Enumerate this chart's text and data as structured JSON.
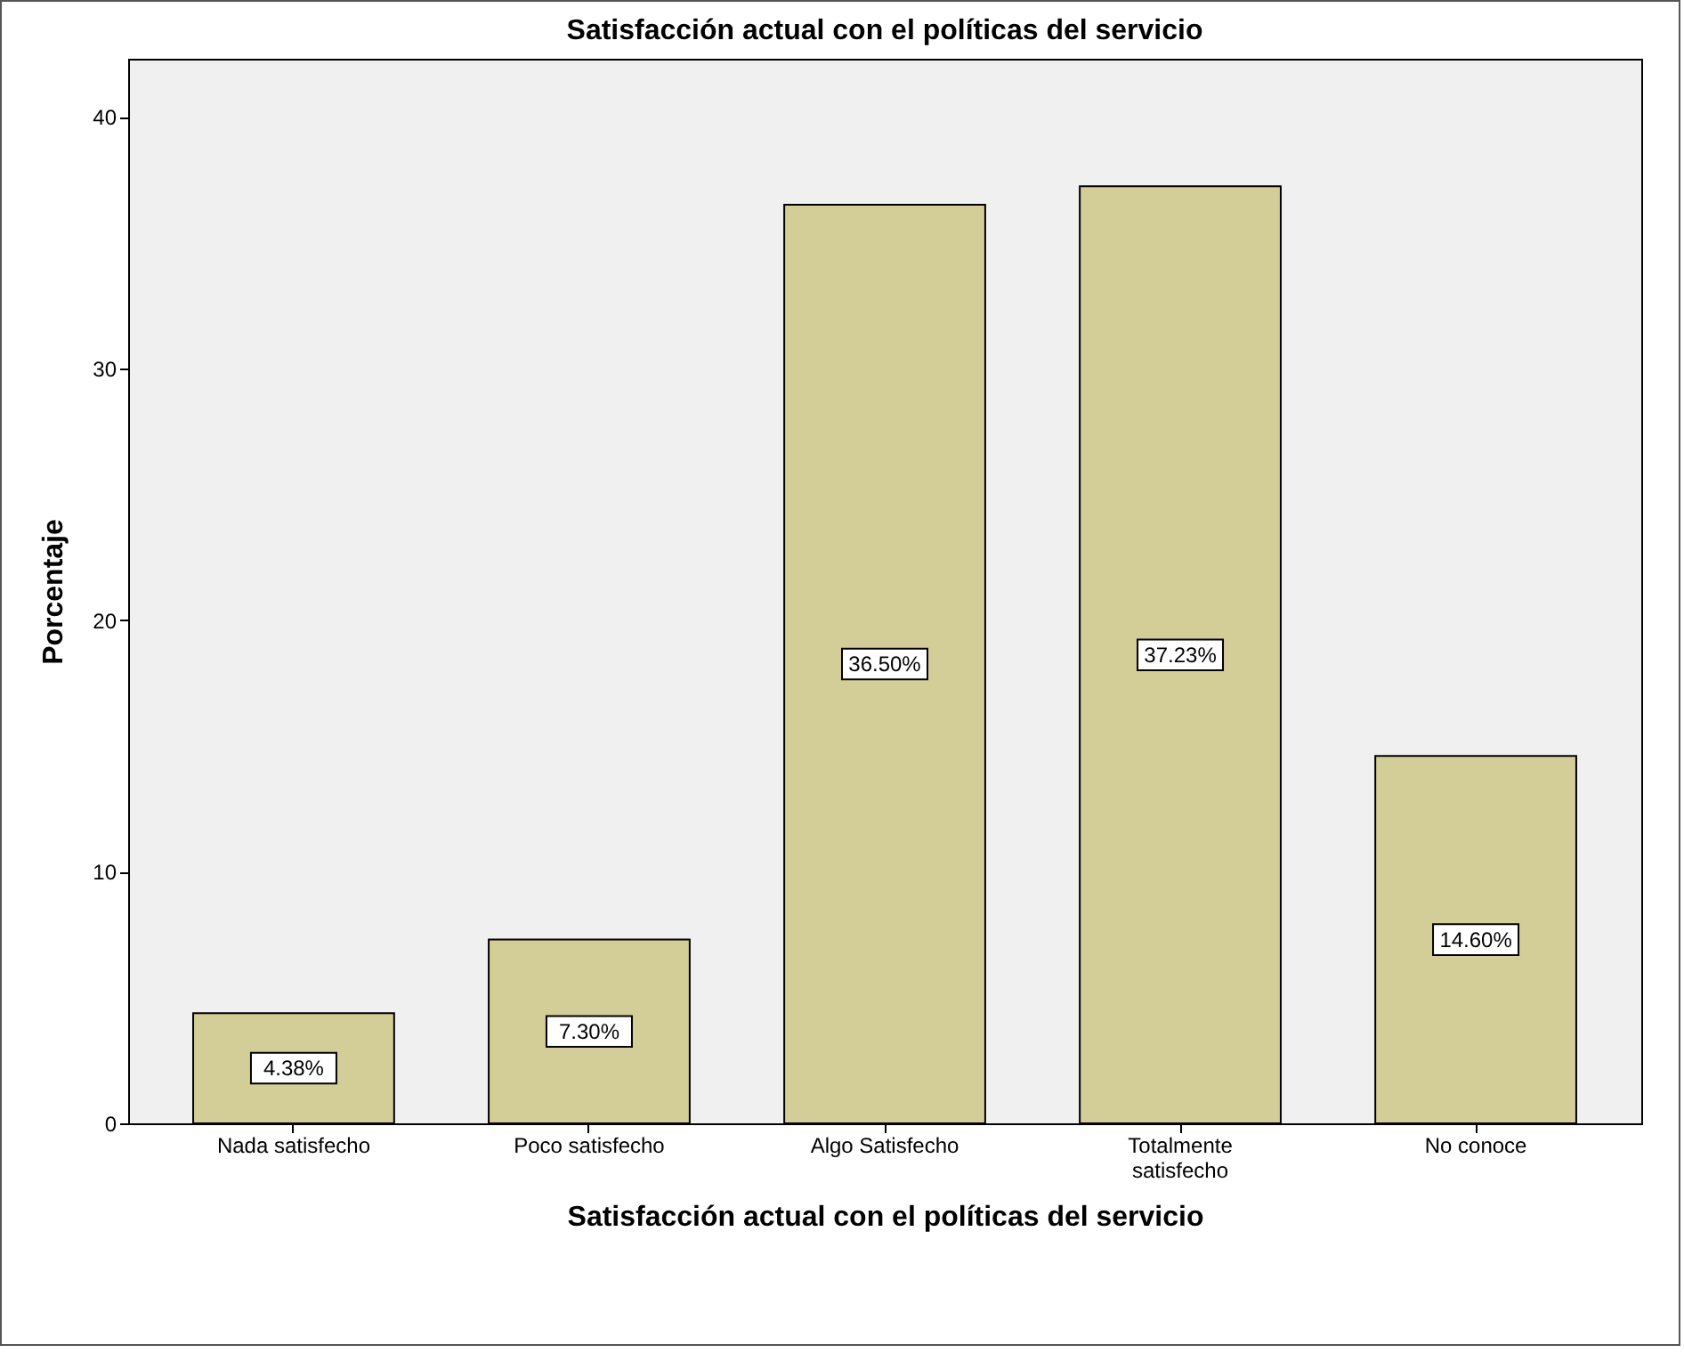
{
  "chart_data": {
    "type": "bar",
    "title": "Satisfacción actual con el políticas del servicio",
    "xlabel": "Satisfacción actual con el políticas del servicio",
    "ylabel": "Porcentaje",
    "categories": [
      "Nada satisfecho",
      "Poco satisfecho",
      "Algo Satisfecho",
      "Totalmente satisfecho",
      "No conoce"
    ],
    "values": [
      4.38,
      7.3,
      36.5,
      37.23,
      14.6
    ],
    "value_labels": [
      "4.38%",
      "7.30%",
      "36.50%",
      "37.23%",
      "14.60%"
    ],
    "color": "#d3ce97",
    "ylim": [
      0,
      42.3
    ],
    "yticks": [
      0,
      10,
      20,
      30,
      40
    ],
    "grid": false
  }
}
